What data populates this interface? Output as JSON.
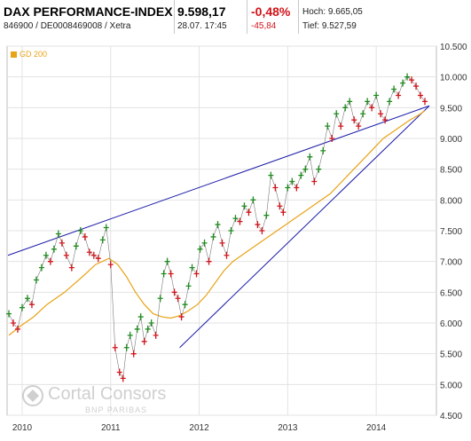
{
  "quote": {
    "name": "DAX PERFORMANCE-INDEX",
    "identifier": "846900 / DE0008469008 / Xetra",
    "price": "9.598,17",
    "timestamp": "28.07. 17:45",
    "change_pct": "-0,48%",
    "change_abs": "-45,84",
    "high": "Hoch: 9.665,05",
    "low": "Tief: 9.527,59"
  },
  "legend": {
    "label": "GD 200",
    "color": "#e8a317"
  },
  "watermark": {
    "line1": "Cortal Consors",
    "line2": "BNP PARIBAS"
  },
  "colors": {
    "up": "#1f8a1f",
    "down": "#d0141a",
    "ma": "#e8a317",
    "trendline": "#1a1aa8",
    "grid": "#e3e3e3"
  },
  "chart_data": {
    "type": "line",
    "title": "",
    "xlabel": "",
    "ylabel": "",
    "ylim": [
      4500,
      10500
    ],
    "xlim": [
      2009.85,
      2014.7
    ],
    "y_ticks": [
      "4.500",
      "5.000",
      "5.500",
      "6.000",
      "6.500",
      "7.000",
      "7.500",
      "8.000",
      "8.500",
      "9.000",
      "9.500",
      "10.000",
      "10.500"
    ],
    "x_ticks": [
      "2010",
      "2011",
      "2012",
      "2013",
      "2014"
    ],
    "grid": true,
    "legend_position": "top-left",
    "series": [
      {
        "name": "",
        "style": "price",
        "x": [
          2009.87,
          2009.92,
          2009.97,
          2010.02,
          2010.08,
          2010.13,
          2010.18,
          2010.24,
          2010.29,
          2010.34,
          2010.38,
          2010.43,
          2010.47,
          2010.52,
          2010.58,
          2010.63,
          2010.68,
          2010.73,
          2010.78,
          2010.83,
          2010.88,
          2010.93,
          2010.97,
          2011.02,
          2011.07,
          2011.12,
          2011.16,
          2011.2,
          2011.24,
          2011.28,
          2011.32,
          2011.36,
          2011.4,
          2011.44,
          2011.48,
          2011.53,
          2011.58,
          2011.62,
          2011.66,
          2011.7,
          2011.74,
          2011.78,
          2011.82,
          2011.86,
          2011.9,
          2011.94,
          2011.99,
          2012.03,
          2012.08,
          2012.13,
          2012.18,
          2012.23,
          2012.28,
          2012.33,
          2012.38,
          2012.43,
          2012.48,
          2012.53,
          2012.58,
          2012.63,
          2012.68,
          2012.73,
          2012.78,
          2012.83,
          2012.88,
          2012.93,
          2012.97,
          2013.02,
          2013.07,
          2013.12,
          2013.17,
          2013.22,
          2013.27,
          2013.32,
          2013.37,
          2013.42,
          2013.47,
          2013.52,
          2013.57,
          2013.62,
          2013.67,
          2013.72,
          2013.77,
          2013.82,
          2013.87,
          2013.92,
          2013.97,
          2014.02,
          2014.07,
          2014.12,
          2014.17,
          2014.22,
          2014.27,
          2014.32,
          2014.37,
          2014.42,
          2014.47,
          2014.52,
          2014.57
        ],
        "y": [
          6150,
          6000,
          5900,
          6250,
          6400,
          6300,
          6700,
          6900,
          7100,
          7000,
          7200,
          7450,
          7300,
          7100,
          6900,
          7250,
          7500,
          7400,
          7150,
          7100,
          7050,
          7350,
          7550,
          6950,
          5600,
          5200,
          5100,
          5600,
          5800,
          5500,
          5900,
          6100,
          5700,
          5900,
          6000,
          5800,
          6400,
          6800,
          7000,
          6800,
          6500,
          6400,
          6100,
          6300,
          6600,
          6900,
          6800,
          7200,
          7300,
          7000,
          7400,
          7600,
          7300,
          7100,
          7500,
          7700,
          7650,
          7900,
          7800,
          8000,
          7600,
          7500,
          7750,
          8400,
          8200,
          7900,
          7800,
          8200,
          8300,
          8200,
          8400,
          8500,
          8700,
          8300,
          8500,
          8800,
          9200,
          9000,
          9400,
          9200,
          9500,
          9600,
          9300,
          9200,
          9400,
          9600,
          9500,
          9700,
          9400,
          9300,
          9600,
          9800,
          9700,
          9900,
          10000,
          9950,
          9850,
          9700,
          9600
        ]
      },
      {
        "name": "GD 200",
        "style": "moving_average",
        "x": [
          2009.87,
          2010.0,
          2010.15,
          2010.3,
          2010.5,
          2010.7,
          2010.85,
          2011.0,
          2011.1,
          2011.2,
          2011.3,
          2011.4,
          2011.5,
          2011.6,
          2011.7,
          2011.8,
          2011.9,
          2012.0,
          2012.1,
          2012.2,
          2012.3,
          2012.4,
          2012.5,
          2012.6,
          2012.7,
          2012.8,
          2012.9,
          2013.0,
          2013.1,
          2013.2,
          2013.3,
          2013.4,
          2013.5,
          2013.6,
          2013.7,
          2013.8,
          2013.9,
          2014.0,
          2014.1,
          2014.2,
          2014.3,
          2014.4,
          2014.5,
          2014.57
        ],
        "y": [
          5800,
          5950,
          6100,
          6300,
          6500,
          6750,
          6950,
          7050,
          6950,
          6750,
          6500,
          6300,
          6150,
          6100,
          6080,
          6120,
          6200,
          6300,
          6450,
          6650,
          6850,
          7000,
          7100,
          7200,
          7300,
          7400,
          7500,
          7600,
          7700,
          7800,
          7900,
          8000,
          8100,
          8250,
          8400,
          8550,
          8700,
          8850,
          9000,
          9100,
          9200,
          9300,
          9380,
          9450
        ]
      },
      {
        "name": "",
        "style": "trendline",
        "x": [
          2009.86,
          2014.62
        ],
        "y": [
          7100,
          9530
        ]
      },
      {
        "name": "",
        "style": "trendline",
        "x": [
          2011.8,
          2014.62
        ],
        "y": [
          5600,
          9530
        ]
      }
    ]
  }
}
